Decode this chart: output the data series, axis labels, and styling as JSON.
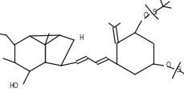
{
  "bg_color": "#ffffff",
  "line_color": "#1a1a1a",
  "line_width": 0.9,
  "text_color": "#1a1a1a",
  "fig_width": 2.29,
  "fig_height": 1.35,
  "dpi": 100,
  "xlim": [
    0,
    229
  ],
  "ylim": [
    0,
    135
  ]
}
